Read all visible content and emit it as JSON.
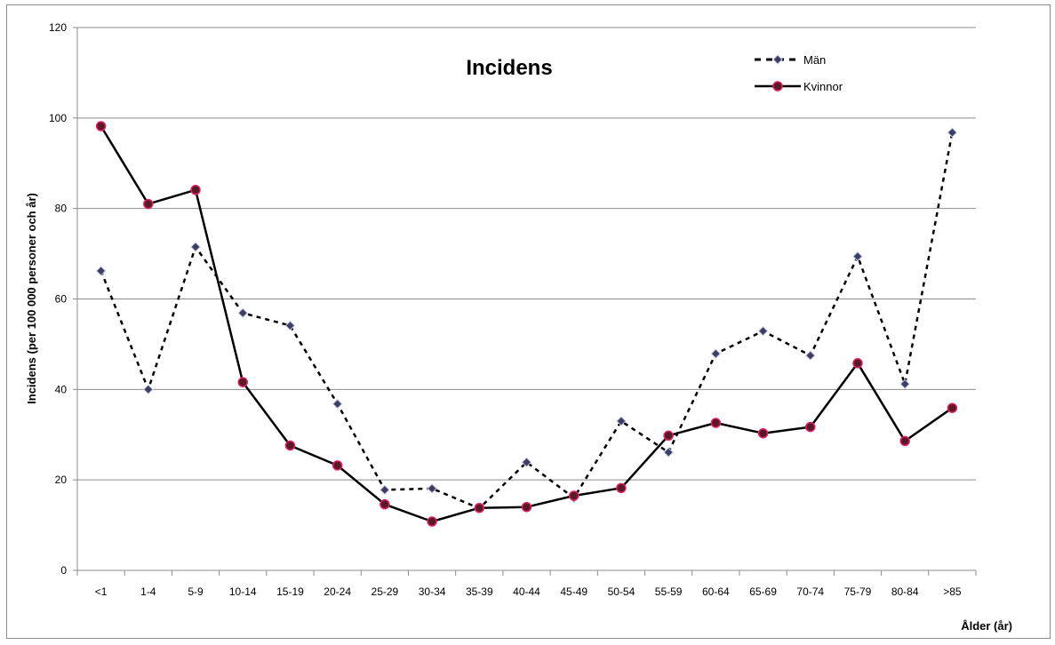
{
  "chart_data": {
    "type": "line",
    "title": "Incidens",
    "xlabel": "Ålder (år)",
    "ylabel": "Incidens  (per 100 000 personer och år)",
    "ylim": [
      0,
      120
    ],
    "yticks": [
      "0",
      "20",
      "40",
      "60",
      "80",
      "100",
      "120"
    ],
    "categories": [
      "<1",
      "1-4",
      "5-9",
      "10-14",
      "15-19",
      "20-24",
      "25-29",
      "30-34",
      "35-39",
      "40-44",
      "45-49",
      "50-54",
      "55-59",
      "60-64",
      "65-69",
      "70-74",
      "75-79",
      "80-84",
      ">85"
    ],
    "series": [
      {
        "name": "Män",
        "style": "dashed",
        "marker": "diamond",
        "color": "#000000",
        "marker_color": "#3b3f63",
        "values": [
          66.2,
          40.0,
          71.5,
          56.9,
          54.1,
          36.8,
          17.8,
          18.1,
          13.7,
          23.9,
          16.0,
          33.0,
          26.1,
          47.9,
          52.9,
          47.5,
          69.4,
          41.2,
          96.8
        ]
      },
      {
        "name": "Kvinnor",
        "style": "solid",
        "marker": "circle",
        "color": "#000000",
        "marker_color": "#5a1a24",
        "values": [
          98.2,
          81.0,
          84.1,
          41.6,
          27.6,
          23.2,
          14.6,
          10.8,
          13.8,
          14.0,
          16.5,
          18.2,
          29.8,
          32.6,
          30.3,
          31.7,
          45.8,
          28.6,
          35.9
        ]
      }
    ],
    "grid": true,
    "legend_position": "top-right"
  }
}
